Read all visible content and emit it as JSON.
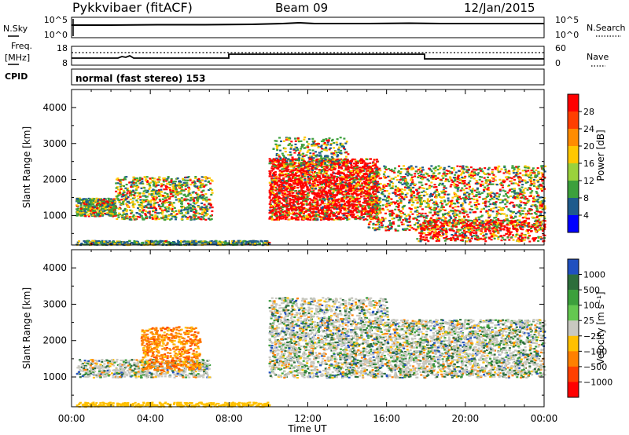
{
  "header": {
    "station": "Pykkvibaer (fitACF)",
    "beam": "Beam 09",
    "date": "12/Jan/2015"
  },
  "noise_panel": {
    "left_label": "N.Sky",
    "right_label": "N.Search",
    "left_ticks": [
      "10^5",
      "10^0"
    ],
    "right_ticks": [
      "10^5",
      "10^0"
    ]
  },
  "freq_panel": {
    "left_label_1": "Freq.",
    "left_label_2": "[MHz]",
    "left_ticks": [
      "18",
      "8"
    ],
    "right_label": "Nave",
    "right_ticks": [
      "60",
      "0"
    ]
  },
  "cpid_panel": {
    "label": "CPID",
    "mode": "normal (fast stereo) 153"
  },
  "chart_data": [
    {
      "type": "heatmap",
      "title": "",
      "ylabel": "Slant Range [km]",
      "xlabel": "",
      "ylim": [
        180,
        4500
      ],
      "xlim": [
        0,
        24
      ],
      "y_ticks": [
        "1000",
        "2000",
        "3000",
        "4000"
      ],
      "colorbar": {
        "label": "Power [dB]",
        "ticks": [
          "28",
          "24",
          "20",
          "16",
          "12",
          "8",
          "4"
        ],
        "colors": [
          "#ff0000",
          "#ff3f00",
          "#ff8c00",
          "#ffc800",
          "#9ad23c",
          "#3ca03c",
          "#1e5a8c",
          "#0000ff"
        ]
      }
    },
    {
      "type": "heatmap",
      "title": "",
      "ylabel": "Slant Range [km]",
      "xlabel": "Time UT",
      "ylim": [
        180,
        4500
      ],
      "xlim": [
        0,
        24
      ],
      "y_ticks": [
        "1000",
        "2000",
        "3000",
        "4000"
      ],
      "x_ticks": [
        "00:00",
        "04:00",
        "08:00",
        "12:00",
        "16:00",
        "20:00",
        "00:00"
      ],
      "colorbar": {
        "label": "Velocity [m s⁻¹]",
        "ticks": [
          "1000",
          "500",
          "100",
          "25",
          "−25",
          "−100",
          "−500",
          "−1000"
        ],
        "colors": [
          "#2050c0",
          "#2d6e3c",
          "#3ca03c",
          "#64c850",
          "#c8c8c0",
          "#ffc000",
          "#ff8000",
          "#ff4000",
          "#ff0000"
        ]
      }
    }
  ]
}
